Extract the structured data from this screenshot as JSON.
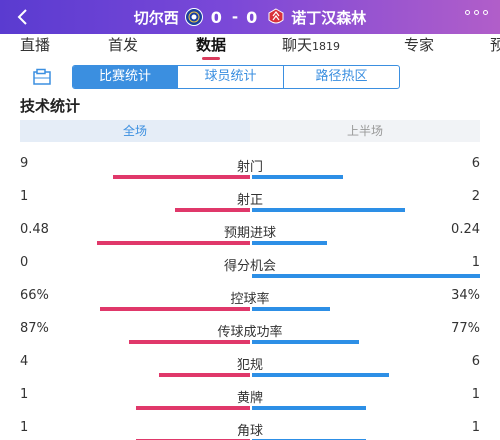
{
  "header": {
    "home_team": "切尔西",
    "home_score": "0",
    "separator": "-",
    "away_score": "0",
    "away_team": "诺丁汉森林"
  },
  "tabs": [
    {
      "label": "直播",
      "count": ""
    },
    {
      "label": "首发",
      "count": ""
    },
    {
      "label": "数据",
      "count": ""
    },
    {
      "label": "聊天",
      "count": "1819"
    },
    {
      "label": "专家",
      "count": ""
    },
    {
      "label": "预",
      "count": ""
    }
  ],
  "segments": [
    "比赛统计",
    "球员统计",
    "路径热区"
  ],
  "section_title": "技术统计",
  "periods": [
    "全场",
    "上半场"
  ],
  "stats": [
    {
      "label": "射门",
      "home": "9",
      "away": "6",
      "home_share": 0.6,
      "away_share": 0.4
    },
    {
      "label": "射正",
      "home": "1",
      "away": "2",
      "home_share": 0.33,
      "away_share": 0.67
    },
    {
      "label": "预期进球",
      "home": "0.48",
      "away": "0.24",
      "home_share": 0.67,
      "away_share": 0.33
    },
    {
      "label": "得分机会",
      "home": "0",
      "away": "1",
      "home_share": 0.0,
      "away_share": 1.0
    },
    {
      "label": "控球率",
      "home": "66%",
      "away": "34%",
      "home_share": 0.66,
      "away_share": 0.34
    },
    {
      "label": "传球成功率",
      "home": "87%",
      "away": "77%",
      "home_share": 0.53,
      "away_share": 0.47
    },
    {
      "label": "犯规",
      "home": "4",
      "away": "6",
      "home_share": 0.4,
      "away_share": 0.6
    },
    {
      "label": "黄牌",
      "home": "1",
      "away": "1",
      "home_share": 0.5,
      "away_share": 0.5
    },
    {
      "label": "角球",
      "home": "1",
      "away": "1",
      "home_share": 0.5,
      "away_share": 0.5
    }
  ],
  "colors": {
    "header_start": "#5a3bd0",
    "header_end": "#b15ec9",
    "home_bar": "#e0386a",
    "away_bar": "#2d8fe6",
    "accent": "#3b8fe0"
  },
  "icons": {
    "back": "back-arrow-icon",
    "home_crest": "chelsea-crest-icon",
    "away_crest": "forest-crest-icon",
    "more": "more-dots-icon",
    "field": "pitch-icon"
  }
}
